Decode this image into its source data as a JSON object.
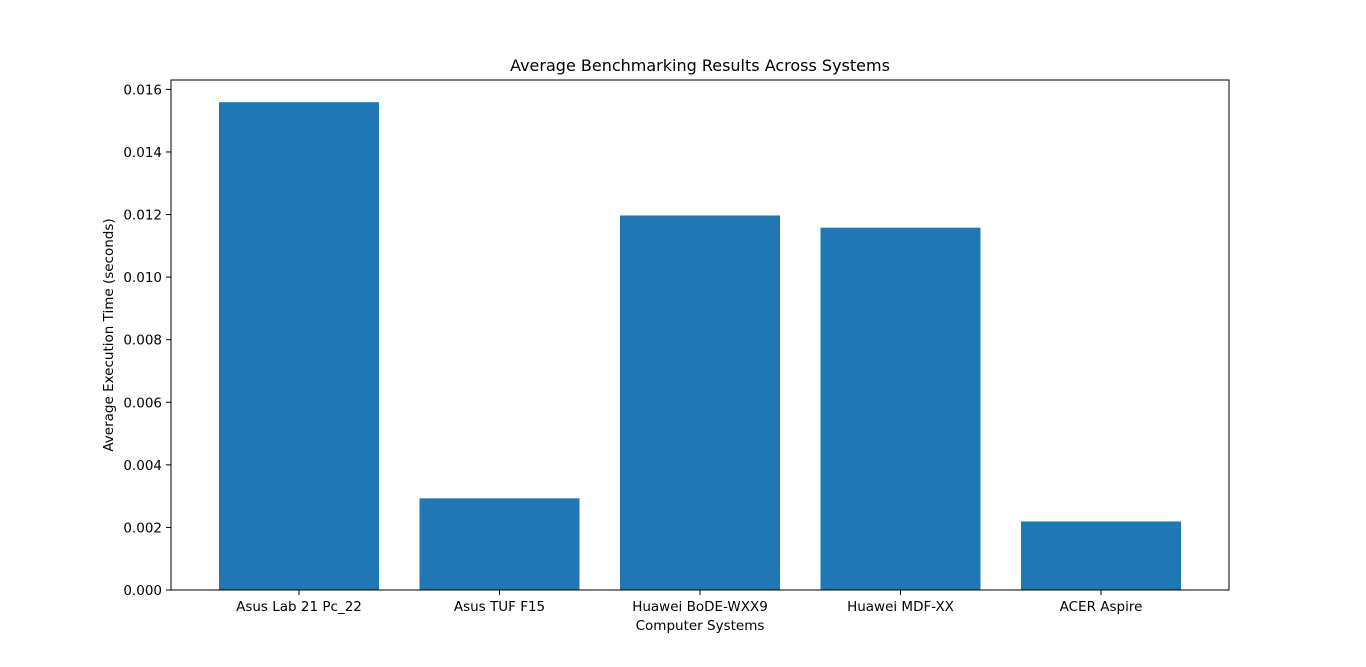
{
  "chart_data": {
    "type": "bar",
    "title": "Average Benchmarking Results Across Systems",
    "xlabel": "Computer Systems",
    "ylabel": "Average Execution Time (seconds)",
    "categories": [
      "Asus Lab 21 Pc_22",
      "Asus TUF F15",
      "Huawei BoDE-WXX9",
      "Huawei MDF-XX",
      "ACER Aspire"
    ],
    "values": [
      0.01559,
      0.00293,
      0.01197,
      0.01158,
      0.00219
    ],
    "ylim": [
      0,
      0.0163
    ],
    "yticks": [
      "0.000",
      "0.002",
      "0.004",
      "0.006",
      "0.008",
      "0.010",
      "0.012",
      "0.014",
      "0.016"
    ],
    "ytick_values": [
      0,
      0.002,
      0.004,
      0.006,
      0.008,
      0.01,
      0.012,
      0.014,
      0.016
    ],
    "bar_color": "#1f77b4",
    "grid": false,
    "legend": "none"
  }
}
